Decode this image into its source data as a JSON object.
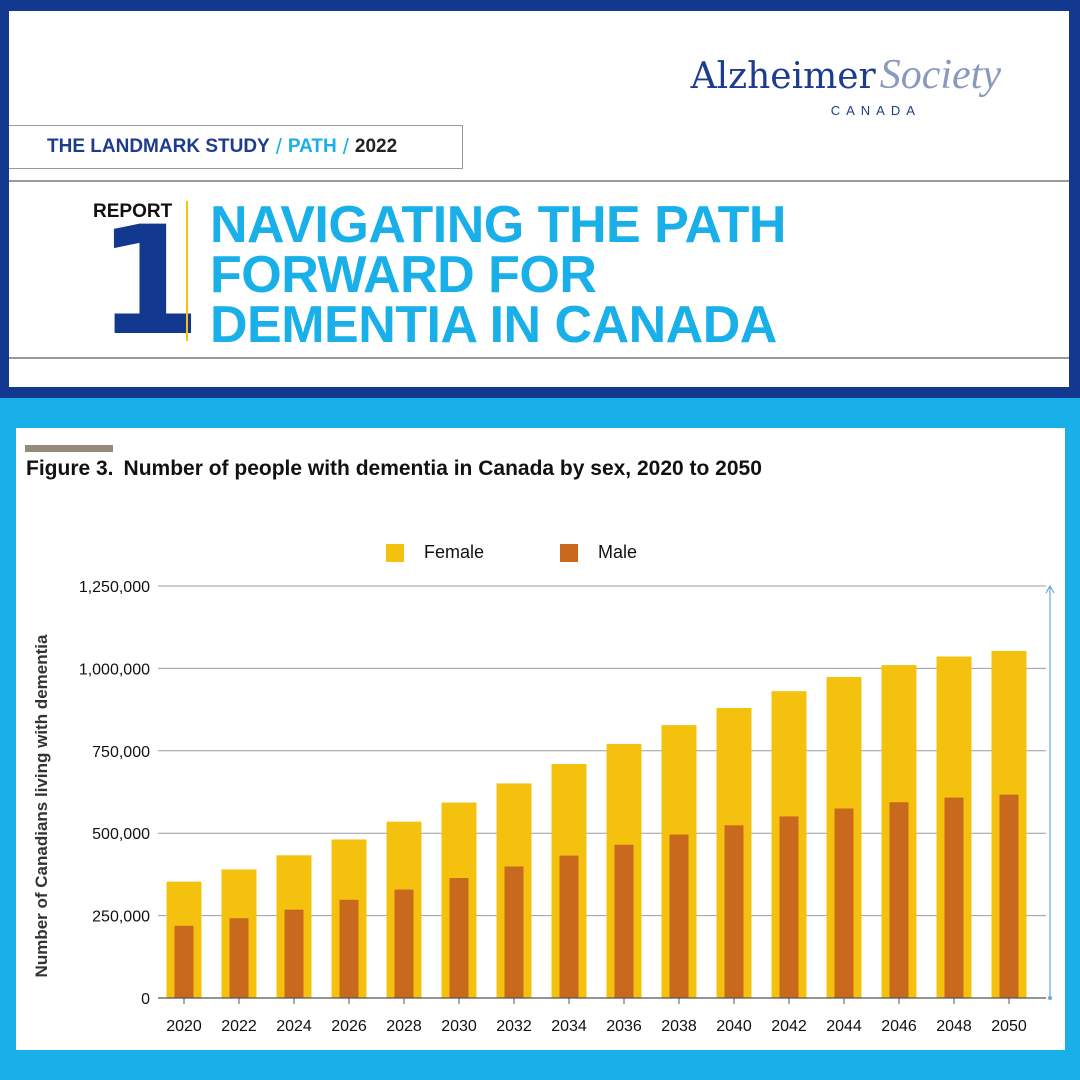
{
  "header": {
    "logo_main": "Alzheimer",
    "logo_society": "Society",
    "logo_sub": "CANADA",
    "study_landmark": "THE LANDMARK STUDY",
    "study_slash1": "/",
    "study_path": "PATH",
    "study_slash2": "/",
    "study_year": "2022",
    "report_label": "REPORT",
    "report_number": "1",
    "title_lines": [
      "NAVIGATING THE PATH",
      "FORWARD FOR",
      "DEMENTIA IN CANADA"
    ]
  },
  "colors": {
    "navy": "#13388f",
    "sky": "#19afe8",
    "female": "#f5c10f",
    "male": "#c8691e",
    "accent_line": "#f3c10f"
  },
  "chart_data": {
    "type": "bar",
    "figure_label": "Figure 3.",
    "title": "Number of people with dementia in Canada by sex, 2020 to 2050",
    "ylabel": "Number of Canadians living with dementia",
    "xlabel": "",
    "categories": [
      "2020",
      "2022",
      "2024",
      "2026",
      "2028",
      "2030",
      "2032",
      "2034",
      "2036",
      "2038",
      "2040",
      "2042",
      "2044",
      "2046",
      "2048",
      "2050"
    ],
    "series": [
      {
        "name": "Female",
        "values": [
          353000,
          390000,
          433000,
          481000,
          535000,
          593000,
          651000,
          710000,
          771000,
          828000,
          880000,
          931000,
          974000,
          1010000,
          1036000,
          1053000
        ]
      },
      {
        "name": "Male",
        "values": [
          219000,
          242000,
          268000,
          298000,
          329000,
          364000,
          399000,
          432000,
          465000,
          496000,
          524000,
          551000,
          575000,
          594000,
          608000,
          617000
        ]
      }
    ],
    "ylim": [
      0,
      1250000
    ],
    "yticks": [
      0,
      250000,
      500000,
      750000,
      1000000,
      1250000
    ],
    "ytick_labels": [
      "0",
      "250,000",
      "500,000",
      "750,000",
      "1,000,000",
      "1,250,000"
    ],
    "grid": true,
    "legend_position": "top-center"
  }
}
